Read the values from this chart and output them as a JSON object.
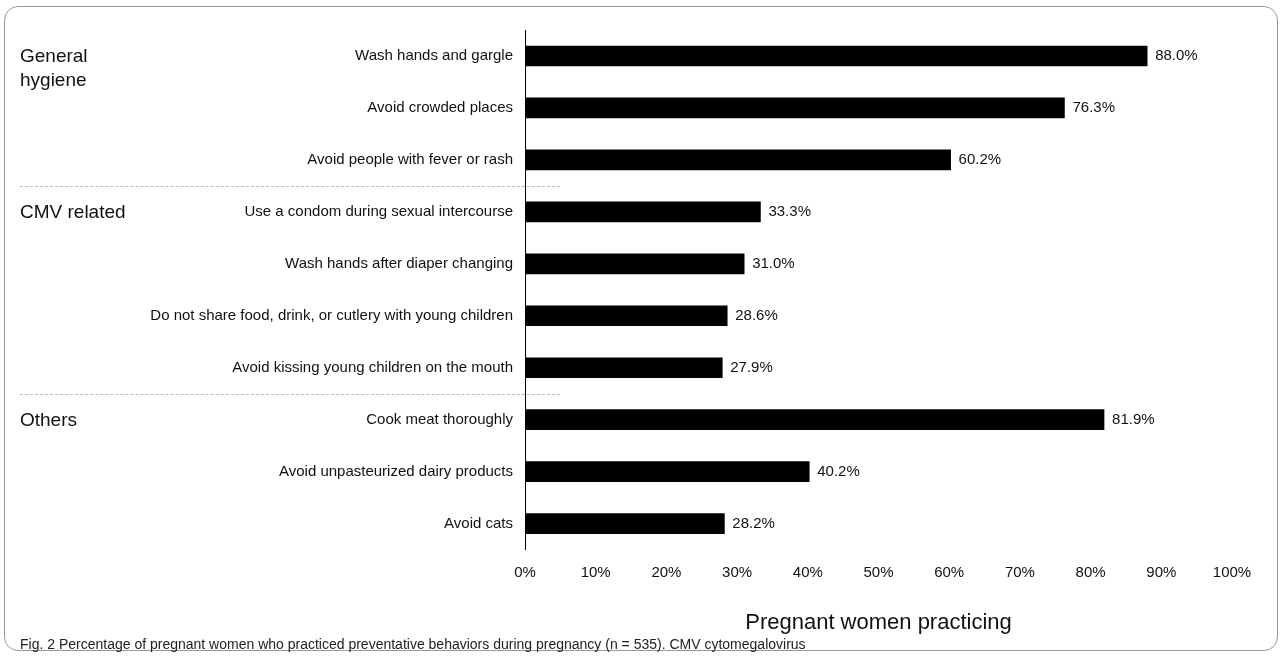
{
  "chart_data": {
    "type": "bar",
    "orientation": "horizontal",
    "xlabel": "Pregnant women practicing",
    "categories": [
      "Wash hands and gargle",
      "Avoid crowded places",
      "Avoid people with fever or rash",
      "Use a condom during sexual intercourse",
      "Wash hands after diaper changing",
      "Do not share food, drink, or cutlery with young children",
      "Avoid kissing young children on the mouth",
      "Cook meat thoroughly",
      "Avoid unpasteurized dairy products",
      "Avoid cats"
    ],
    "values": [
      88.0,
      76.3,
      60.2,
      33.3,
      31.0,
      28.6,
      27.9,
      81.9,
      40.2,
      28.2
    ],
    "value_labels": [
      "88.0%",
      "76.3%",
      "60.2%",
      "33.3%",
      "31.0%",
      "28.6%",
      "27.9%",
      "81.9%",
      "40.2%",
      "28.2%"
    ],
    "color": "#000000",
    "xlim": [
      0,
      100
    ],
    "xticks": [
      {
        "value": 0,
        "label": "0%"
      },
      {
        "value": 10,
        "label": "10%"
      },
      {
        "value": 20,
        "label": "20%"
      },
      {
        "value": 30,
        "label": "30%"
      },
      {
        "value": 40,
        "label": "40%"
      },
      {
        "value": 50,
        "label": "50%"
      },
      {
        "value": 60,
        "label": "60%"
      },
      {
        "value": 70,
        "label": "70%"
      },
      {
        "value": 80,
        "label": "80%"
      },
      {
        "value": 90,
        "label": "90%"
      },
      {
        "value": 100,
        "label": "100%"
      }
    ],
    "grid": false,
    "legend": false,
    "annotations": [
      "General hygiene",
      "CMV related",
      "Others",
      "Fig. 2  Percentage of pregnant women who practiced preventative behaviors during pregnancy (n = 535). CMV cytomegalovirus"
    ]
  }
}
